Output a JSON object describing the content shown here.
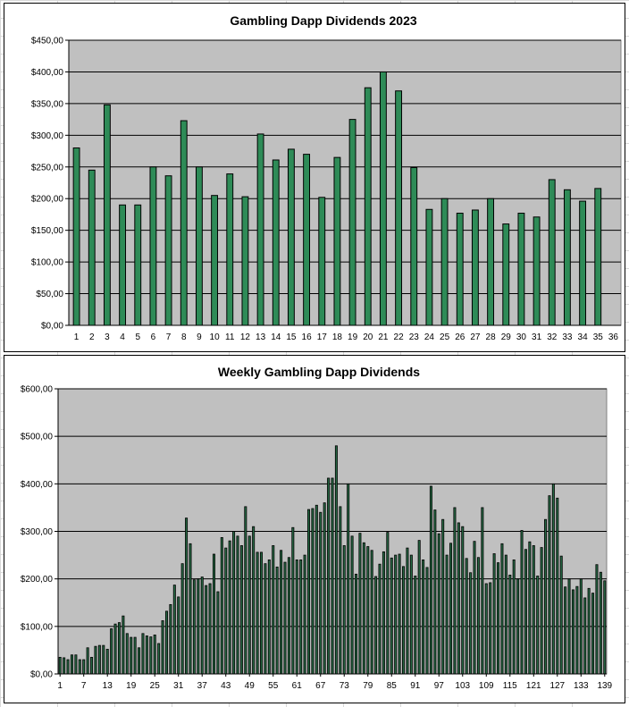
{
  "colors": {
    "plot_bg": "#c0c0c0",
    "bar_fill_1": "#2e8b57",
    "bar_fill_2": "#276b45",
    "bar_stroke": "#000000",
    "gridline": "#000000"
  },
  "chart_data": [
    {
      "type": "bar",
      "title": "Gambling Dapp Dividends 2023",
      "categories": [
        "1",
        "2",
        "3",
        "4",
        "5",
        "6",
        "7",
        "8",
        "9",
        "10",
        "11",
        "12",
        "13",
        "14",
        "15",
        "16",
        "17",
        "18",
        "19",
        "20",
        "21",
        "22",
        "23",
        "24",
        "25",
        "26",
        "27",
        "28",
        "29",
        "30",
        "31",
        "32",
        "33",
        "34",
        "35",
        "36"
      ],
      "values": [
        280,
        245,
        348,
        190,
        190,
        250,
        236,
        323,
        250,
        205,
        239,
        203,
        302,
        261,
        278,
        270,
        202,
        265,
        325,
        375,
        400,
        370,
        249,
        183,
        200,
        177,
        182,
        200,
        160,
        177,
        171,
        230,
        214,
        196,
        216,
        null
      ],
      "ylim": [
        0,
        450
      ],
      "yticks": [
        "$0,00",
        "$50,00",
        "$100,00",
        "$150,00",
        "$200,00",
        "$250,00",
        "$300,00",
        "$350,00",
        "$400,00",
        "$450,00"
      ],
      "grid": true,
      "legend": "none"
    },
    {
      "type": "bar",
      "title": "Weekly Gambling Dapp Dividends",
      "x_start": 1,
      "x_end": 139,
      "values": [
        35,
        34,
        30,
        40,
        40,
        30,
        30,
        55,
        35,
        58,
        60,
        60,
        52,
        95,
        105,
        108,
        122,
        85,
        77,
        77,
        55,
        85,
        80,
        78,
        82,
        64,
        112,
        132,
        146,
        187,
        162,
        232,
        328,
        274,
        198,
        200,
        204,
        186,
        190,
        252,
        173,
        287,
        265,
        280,
        300,
        290,
        270,
        352,
        290,
        310,
        256,
        256,
        232,
        240,
        270,
        225,
        260,
        235,
        245,
        308,
        240,
        240,
        250,
        346,
        348,
        355,
        340,
        360,
        412,
        412,
        480,
        352,
        270,
        400,
        290,
        210,
        296,
        276,
        268,
        260,
        205,
        231,
        257,
        298,
        244,
        250,
        252,
        226,
        265,
        250,
        206,
        281,
        240,
        224,
        395,
        345,
        295,
        325,
        250,
        275,
        350,
        318,
        310,
        243,
        213,
        279,
        245,
        350,
        190,
        192,
        253,
        234,
        274,
        250,
        208,
        240,
        200,
        302,
        262,
        278,
        270,
        206,
        266,
        325,
        375,
        400,
        370,
        248,
        183,
        200,
        177,
        184,
        200,
        160,
        180,
        170,
        230,
        214,
        196
      ]
    }
  ],
  "chart2_axis": {
    "ylim": [
      0,
      600
    ],
    "yticks": [
      "$0,00",
      "$100,00",
      "$200,00",
      "$300,00",
      "$400,00",
      "$500,00",
      "$600,00"
    ],
    "xticks": [
      "1",
      "7",
      "13",
      "19",
      "25",
      "31",
      "37",
      "43",
      "49",
      "55",
      "61",
      "67",
      "73",
      "79",
      "85",
      "91",
      "97",
      "103",
      "109",
      "115",
      "121",
      "127",
      "133",
      "139"
    ]
  }
}
